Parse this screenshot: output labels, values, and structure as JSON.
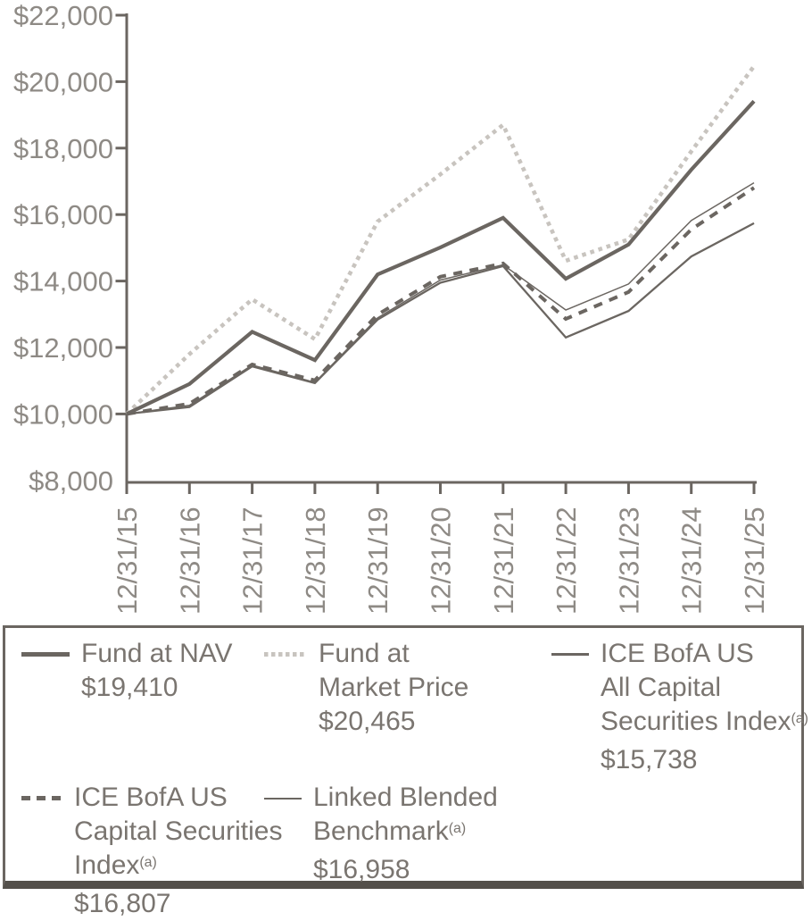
{
  "colors": {
    "line_dark": "#6b6661",
    "line_light": "#c8c4bf",
    "axis": "#6b6661",
    "axis_label": "#8e8a85",
    "legend_text": "#7a7570",
    "legend_border": "#6b6661",
    "legend_bottom_bar": "#54504b"
  },
  "chart_data": {
    "type": "line",
    "title": "",
    "xlabel": "",
    "ylabel": "",
    "grid": false,
    "legend_position": "bottom",
    "x_tick_labels": [
      "12/31/15",
      "12/31/16",
      "12/31/17",
      "12/31/18",
      "12/31/19",
      "12/31/20",
      "12/31/21",
      "12/31/22",
      "12/31/23",
      "12/31/24",
      "12/31/25"
    ],
    "y_axis": {
      "min": 8000,
      "max": 22000,
      "step": 2000,
      "tick_labels": [
        "$22,000",
        "$20,000",
        "$18,000",
        "$16,000",
        "$14,000",
        "$12,000",
        "$10,000",
        "$8,000"
      ],
      "tick_values": [
        22000,
        20000,
        18000,
        16000,
        14000,
        12000,
        10000,
        8000
      ]
    },
    "series": [
      {
        "name": "Fund at NAV",
        "footnote": "",
        "final_value_label": "$19,410",
        "style": "solid-thick",
        "color": "#6b6661",
        "values": [
          10000,
          10900,
          12470,
          11620,
          14200,
          15010,
          15900,
          14070,
          15100,
          17350,
          19410
        ]
      },
      {
        "name": "Fund at Market Price",
        "footnote": "",
        "final_value_label": "$20,465",
        "style": "dotted",
        "color": "#c8c4bf",
        "values": [
          10000,
          11800,
          13450,
          12250,
          15790,
          17210,
          18700,
          14610,
          15250,
          17900,
          20465
        ]
      },
      {
        "name": "ICE BofA US All Capital Securities Index",
        "footnote": "(a)",
        "final_value_label": "$15,738",
        "style": "solid-medium",
        "color": "#6b6661",
        "values": [
          10000,
          10210,
          11430,
          10930,
          12840,
          13950,
          14450,
          12300,
          13100,
          14740,
          15738
        ]
      },
      {
        "name": "ICE BofA US Capital Securities Index",
        "footnote": "(a)",
        "final_value_label": "$16,807",
        "style": "dashed",
        "color": "#6b6661",
        "values": [
          10000,
          10310,
          11490,
          11010,
          12990,
          14130,
          14530,
          12860,
          13670,
          15550,
          16807
        ]
      },
      {
        "name": "Linked Blended Benchmark",
        "footnote": "(a)",
        "final_value_label": "$16,958",
        "style": "solid-thin",
        "color": "#6b6661",
        "values": [
          10000,
          10260,
          11470,
          10950,
          12890,
          14030,
          14490,
          13130,
          13910,
          15820,
          16958
        ]
      }
    ]
  },
  "legend": {
    "rows": [
      [
        {
          "series_index": 0,
          "swatch": "solid-thick",
          "name_lines": [
            "Fund at NAV"
          ],
          "sup": "",
          "value": "$19,410"
        },
        {
          "series_index": 1,
          "swatch": "dotted",
          "name_lines": [
            "Fund at",
            "Market Price"
          ],
          "sup": "",
          "value": "$20,465"
        },
        {
          "series_index": 2,
          "swatch": "solid-medium",
          "name_lines": [
            "ICE BofA US",
            "All Capital",
            "Securities Index"
          ],
          "sup": "(a)",
          "value": "$15,738"
        }
      ],
      [
        {
          "series_index": 3,
          "swatch": "dashed",
          "name_lines": [
            "ICE BofA US",
            "Capital Securities",
            "Index"
          ],
          "sup": "(a)",
          "value": "$16,807"
        },
        {
          "series_index": 4,
          "swatch": "solid-thin",
          "name_lines": [
            "Linked Blended",
            "Benchmark"
          ],
          "sup": "(a)",
          "value": "$16,958"
        }
      ]
    ]
  }
}
